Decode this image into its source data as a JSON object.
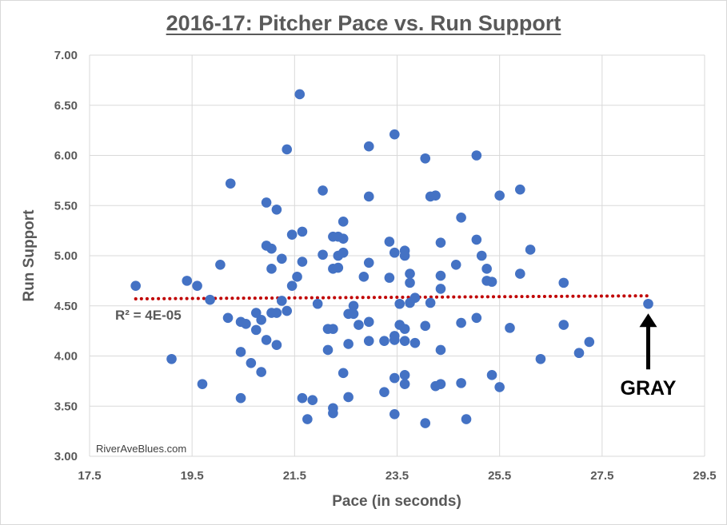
{
  "chart_data": {
    "type": "scatter",
    "title": "2016-17: Pitcher Pace vs. Run Support",
    "xlabel": "Pace (in seconds)",
    "ylabel": "Run Support",
    "xlim": [
      17.5,
      29.5
    ],
    "ylim": [
      3.0,
      7.0
    ],
    "x_ticks": [
      "17.5",
      "19.5",
      "21.5",
      "23.5",
      "25.5",
      "27.5",
      "29.5"
    ],
    "y_ticks": [
      "3.00",
      "3.50",
      "4.00",
      "4.50",
      "5.00",
      "5.50",
      "6.00",
      "6.50",
      "7.00"
    ],
    "grid": true,
    "marker_color": "#4472C4",
    "trendline": {
      "type": "linear",
      "color": "#C00000",
      "style": "dotted",
      "x": [
        18.4,
        28.4
      ],
      "y": [
        4.57,
        4.6
      ],
      "label": "R² = 4E-05"
    },
    "annotation": {
      "text": "GRAY",
      "target": [
        28.4,
        4.52
      ]
    },
    "watermark": "RiverAveBlues.com",
    "points": [
      [
        18.4,
        4.7
      ],
      [
        19.1,
        3.97
      ],
      [
        19.4,
        4.75
      ],
      [
        19.6,
        4.7
      ],
      [
        19.7,
        3.72
      ],
      [
        19.85,
        4.56
      ],
      [
        20.05,
        4.91
      ],
      [
        20.2,
        4.38
      ],
      [
        20.25,
        5.72
      ],
      [
        20.45,
        4.34
      ],
      [
        20.45,
        4.04
      ],
      [
        20.45,
        3.58
      ],
      [
        20.55,
        4.32
      ],
      [
        20.65,
        3.93
      ],
      [
        20.75,
        4.43
      ],
      [
        20.75,
        4.26
      ],
      [
        20.85,
        4.36
      ],
      [
        20.85,
        3.84
      ],
      [
        20.95,
        5.53
      ],
      [
        20.95,
        5.1
      ],
      [
        20.95,
        4.16
      ],
      [
        21.05,
        5.07
      ],
      [
        21.05,
        4.87
      ],
      [
        21.05,
        4.43
      ],
      [
        21.15,
        5.46
      ],
      [
        21.15,
        4.43
      ],
      [
        21.15,
        4.11
      ],
      [
        21.25,
        4.97
      ],
      [
        21.25,
        4.55
      ],
      [
        21.35,
        4.45
      ],
      [
        21.35,
        6.06
      ],
      [
        21.45,
        5.21
      ],
      [
        21.45,
        4.7
      ],
      [
        21.55,
        4.79
      ],
      [
        21.6,
        6.61
      ],
      [
        21.65,
        5.24
      ],
      [
        21.65,
        4.94
      ],
      [
        21.65,
        3.58
      ],
      [
        21.75,
        3.37
      ],
      [
        21.85,
        3.56
      ],
      [
        21.95,
        4.52
      ],
      [
        22.05,
        5.65
      ],
      [
        22.05,
        5.01
      ],
      [
        22.15,
        4.27
      ],
      [
        22.15,
        4.06
      ],
      [
        22.25,
        5.19
      ],
      [
        22.25,
        4.87
      ],
      [
        22.25,
        4.27
      ],
      [
        22.25,
        3.48
      ],
      [
        22.25,
        3.43
      ],
      [
        22.35,
        5.19
      ],
      [
        22.35,
        4.88
      ],
      [
        22.35,
        5.0
      ],
      [
        22.45,
        5.34
      ],
      [
        22.45,
        5.17
      ],
      [
        22.45,
        5.03
      ],
      [
        22.45,
        3.83
      ],
      [
        22.55,
        4.42
      ],
      [
        22.55,
        4.12
      ],
      [
        22.55,
        3.59
      ],
      [
        22.65,
        4.5
      ],
      [
        22.65,
        4.42
      ],
      [
        22.75,
        4.31
      ],
      [
        22.85,
        4.79
      ],
      [
        22.95,
        6.09
      ],
      [
        22.95,
        5.59
      ],
      [
        22.95,
        4.93
      ],
      [
        22.95,
        4.34
      ],
      [
        22.95,
        4.15
      ],
      [
        23.25,
        4.15
      ],
      [
        23.25,
        3.64
      ],
      [
        23.35,
        5.14
      ],
      [
        23.35,
        4.78
      ],
      [
        23.45,
        6.21
      ],
      [
        23.45,
        5.03
      ],
      [
        23.45,
        4.2
      ],
      [
        23.45,
        4.16
      ],
      [
        23.45,
        3.78
      ],
      [
        23.45,
        3.42
      ],
      [
        23.55,
        4.52
      ],
      [
        23.55,
        4.31
      ],
      [
        23.65,
        5.05
      ],
      [
        23.65,
        5.0
      ],
      [
        23.65,
        4.27
      ],
      [
        23.65,
        4.15
      ],
      [
        23.65,
        3.81
      ],
      [
        23.65,
        3.72
      ],
      [
        23.75,
        4.82
      ],
      [
        23.75,
        4.73
      ],
      [
        23.75,
        4.53
      ],
      [
        23.85,
        4.58
      ],
      [
        23.85,
        4.13
      ],
      [
        24.05,
        5.97
      ],
      [
        24.05,
        4.3
      ],
      [
        24.05,
        3.33
      ],
      [
        24.15,
        5.59
      ],
      [
        24.15,
        4.53
      ],
      [
        24.25,
        5.6
      ],
      [
        24.25,
        3.7
      ],
      [
        24.35,
        5.13
      ],
      [
        24.35,
        4.8
      ],
      [
        24.35,
        4.67
      ],
      [
        24.35,
        4.06
      ],
      [
        24.35,
        3.72
      ],
      [
        24.65,
        4.91
      ],
      [
        24.75,
        5.38
      ],
      [
        24.75,
        4.33
      ],
      [
        24.75,
        3.73
      ],
      [
        24.85,
        3.37
      ],
      [
        25.05,
        6.0
      ],
      [
        25.05,
        5.16
      ],
      [
        25.05,
        4.38
      ],
      [
        25.15,
        5.0
      ],
      [
        25.25,
        4.87
      ],
      [
        25.25,
        4.75
      ],
      [
        25.35,
        4.74
      ],
      [
        25.35,
        3.81
      ],
      [
        25.5,
        5.6
      ],
      [
        25.5,
        3.69
      ],
      [
        25.7,
        4.28
      ],
      [
        25.9,
        5.66
      ],
      [
        25.9,
        4.82
      ],
      [
        26.1,
        5.06
      ],
      [
        26.3,
        3.97
      ],
      [
        26.75,
        4.73
      ],
      [
        26.75,
        4.31
      ],
      [
        27.05,
        4.03
      ],
      [
        27.25,
        4.14
      ],
      [
        28.4,
        4.52
      ]
    ]
  }
}
